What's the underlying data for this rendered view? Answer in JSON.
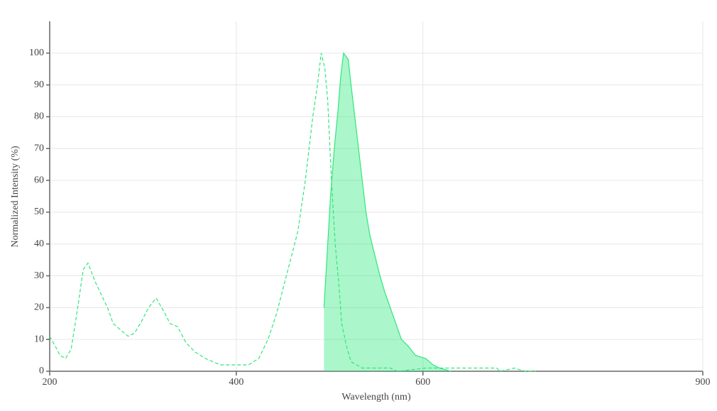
{
  "chart_data": {
    "type": "line",
    "x_label": "Wavelength (nm)",
    "y_label": "Normalized Intensity (%)",
    "xlim": [
      200,
      900
    ],
    "xticks": [
      200,
      400,
      600,
      900
    ],
    "ylim": [
      0,
      110
    ],
    "yticks": [
      0,
      10,
      20,
      30,
      40,
      50,
      60,
      70,
      80,
      90,
      100
    ],
    "grid": true,
    "series": [
      {
        "color": "#2ee87a",
        "line_style": "dashed",
        "fill": false,
        "x": [
          200,
          207.6,
          211,
          217,
          223,
          229,
          236,
          241,
          249,
          257,
          262,
          268,
          276,
          284,
          291,
          299,
          306,
          314,
          322,
          329,
          337,
          346,
          356,
          367,
          375,
          383,
          398,
          413,
          424,
          434,
          443,
          451,
          459,
          466,
          474,
          482,
          487,
          491,
          495,
          498,
          502,
          506,
          510,
          513,
          518,
          523,
          535,
          565,
          573,
          603,
          634,
          679,
          683,
          698,
          710,
          721
        ],
        "values": [
          11,
          7,
          5,
          4,
          7,
          18,
          32,
          34,
          28,
          23,
          20,
          15,
          13,
          11,
          12,
          16,
          20,
          23,
          19,
          15,
          14,
          9,
          6,
          4,
          3,
          2,
          2,
          2,
          4,
          10,
          18,
          27,
          36,
          44,
          60,
          80,
          90,
          100,
          95,
          85,
          60,
          40,
          27,
          15,
          8,
          3,
          1,
          1,
          0,
          1,
          1,
          1,
          0,
          1,
          0,
          0
        ]
      },
      {
        "color": "#2ee87a",
        "line_style": "solid",
        "fill": true,
        "x": [
          494,
          497,
          501,
          505,
          509,
          512,
          515,
          520,
          523,
          527,
          533,
          539,
          543,
          548,
          554,
          559,
          565,
          571,
          577,
          584,
          592,
          603,
          611,
          618,
          630
        ],
        "values": [
          20,
          35,
          55,
          70,
          82,
          93,
          100,
          98,
          90,
          80,
          65,
          50,
          43,
          37,
          30,
          25,
          20,
          15,
          10,
          8,
          5,
          4,
          2,
          1,
          0
        ]
      }
    ]
  }
}
